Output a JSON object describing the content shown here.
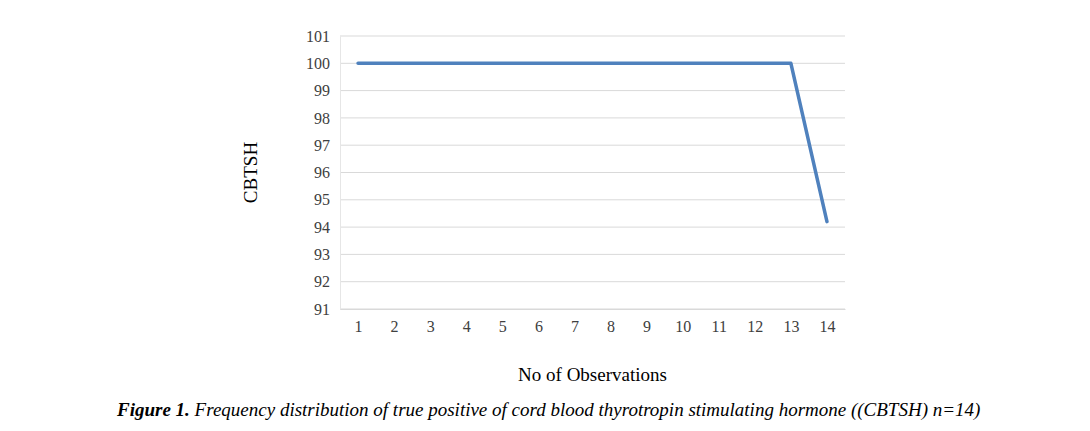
{
  "chart_data": {
    "type": "line",
    "title": "Figure 1. Frequency distribution of true positive of cord blood thyrotropin stimulating hormone ((CBTSH) n=14)",
    "x_label": "No of Observations",
    "y_label": "CBTSH",
    "x": [
      1,
      2,
      3,
      4,
      5,
      6,
      7,
      8,
      9,
      10,
      11,
      12,
      13,
      14
    ],
    "values": [
      100,
      100,
      100,
      100,
      100,
      100,
      100,
      100,
      100,
      100,
      100,
      100,
      100,
      94.2
    ],
    "color": "#4f81bd",
    "xlim": [
      0.5,
      14.5
    ],
    "xticks": [
      1,
      2,
      3,
      4,
      5,
      6,
      7,
      8,
      9,
      10,
      11,
      12,
      13,
      14
    ],
    "ylim": [
      91,
      101
    ],
    "yticks": [
      91,
      92,
      93,
      94,
      95,
      96,
      97,
      98,
      99,
      100,
      101
    ],
    "grid": true
  }
}
